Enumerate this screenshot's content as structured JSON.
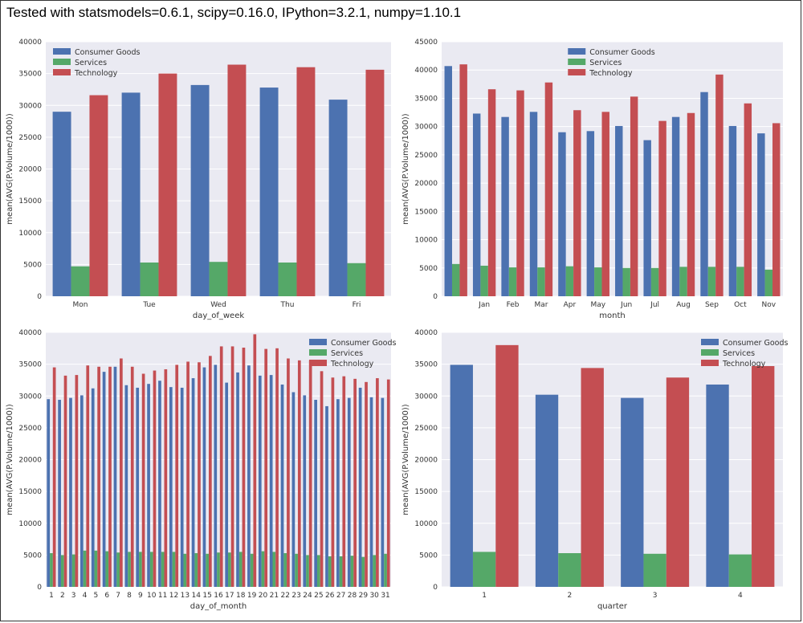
{
  "header": "Tested with statsmodels=0.6.1, scipy=0.16.0, IPython=3.2.1, numpy=1.10.1",
  "colors": {
    "Consumer Goods": "#4c72b0",
    "Services": "#55a868",
    "Technology": "#c44e52",
    "background": "#eaeaf2"
  },
  "chart_data": [
    {
      "type": "bar",
      "xlabel": "day_of_week",
      "ylabel": "mean(AVG(P.Volume/1000))",
      "ylim": [
        0,
        40000
      ],
      "yticks": [
        0,
        5000,
        10000,
        15000,
        20000,
        25000,
        30000,
        35000,
        40000
      ],
      "categories": [
        "Mon",
        "Tue",
        "Wed",
        "Thu",
        "Fri"
      ],
      "legend_position": "top-left",
      "series": [
        {
          "name": "Consumer Goods",
          "values": [
            29000,
            32000,
            33200,
            32800,
            30900
          ]
        },
        {
          "name": "Services",
          "values": [
            4700,
            5300,
            5400,
            5300,
            5200
          ]
        },
        {
          "name": "Technology",
          "values": [
            31600,
            35000,
            36400,
            36000,
            35600
          ]
        }
      ]
    },
    {
      "type": "bar",
      "xlabel": "month",
      "ylabel": "mean(AVG(P.Volume/1000))",
      "ylim": [
        0,
        45000
      ],
      "yticks": [
        0,
        5000,
        10000,
        15000,
        20000,
        25000,
        30000,
        35000,
        40000,
        45000
      ],
      "categories": [
        "",
        "Jan",
        "Feb",
        "Mar",
        "Apr",
        "May",
        "Jun",
        "Jul",
        "Aug",
        "Sep",
        "Oct",
        "Nov"
      ],
      "legend_position": "top-center",
      "series": [
        {
          "name": "Consumer Goods",
          "values": [
            40700,
            32300,
            31700,
            32600,
            29000,
            29200,
            30100,
            27600,
            31700,
            36100,
            30100,
            28800
          ]
        },
        {
          "name": "Services",
          "values": [
            5700,
            5400,
            5100,
            5100,
            5300,
            5100,
            5000,
            5000,
            5200,
            5200,
            5200,
            4700
          ]
        },
        {
          "name": "Technology",
          "values": [
            41000,
            36600,
            36400,
            37800,
            32900,
            32600,
            35300,
            31000,
            32400,
            39200,
            34100,
            30600
          ]
        }
      ]
    },
    {
      "type": "bar",
      "xlabel": "day_of_month",
      "ylabel": "mean(AVG(P.Volume/1000))",
      "ylim": [
        0,
        40000
      ],
      "yticks": [
        0,
        5000,
        10000,
        15000,
        20000,
        25000,
        30000,
        35000,
        40000
      ],
      "categories": [
        "1",
        "2",
        "3",
        "4",
        "5",
        "6",
        "7",
        "8",
        "9",
        "10",
        "11",
        "12",
        "13",
        "14",
        "15",
        "16",
        "17",
        "18",
        "19",
        "20",
        "21",
        "22",
        "23",
        "24",
        "25",
        "26",
        "27",
        "28",
        "29",
        "30",
        "31"
      ],
      "legend_position": "top-right",
      "series": [
        {
          "name": "Consumer Goods",
          "values": [
            29500,
            29400,
            29700,
            30100,
            31200,
            33800,
            34600,
            31700,
            31300,
            31900,
            32400,
            31400,
            31300,
            32800,
            34500,
            34900,
            32100,
            33700,
            34800,
            33200,
            33300,
            31800,
            30600,
            30100,
            29400,
            28400,
            29500,
            29700,
            31300,
            29800,
            29700
          ]
        },
        {
          "name": "Services",
          "values": [
            5300,
            5000,
            5100,
            5700,
            5700,
            5600,
            5400,
            5500,
            5500,
            5500,
            5500,
            5500,
            5200,
            5300,
            5200,
            5400,
            5400,
            5500,
            5200,
            5600,
            5500,
            5300,
            5200,
            5000,
            5000,
            4800,
            4800,
            4900,
            4700,
            5000,
            5200
          ]
        },
        {
          "name": "Technology",
          "values": [
            34500,
            33200,
            33300,
            34800,
            34600,
            34600,
            35900,
            34600,
            33500,
            34000,
            34200,
            34900,
            35400,
            35300,
            36300,
            37800,
            37800,
            37600,
            39700,
            37400,
            37500,
            35900,
            35600,
            35600,
            33900,
            32900,
            33100,
            32700,
            32200,
            32800,
            32600
          ]
        }
      ]
    },
    {
      "type": "bar",
      "xlabel": "quarter",
      "ylabel": "mean(AVG(P.Volume/1000))",
      "ylim": [
        0,
        40000
      ],
      "yticks": [
        0,
        5000,
        10000,
        15000,
        20000,
        25000,
        30000,
        35000,
        40000
      ],
      "categories": [
        "1",
        "2",
        "3",
        "4"
      ],
      "legend_position": "top-right",
      "series": [
        {
          "name": "Consumer Goods",
          "values": [
            34900,
            30200,
            29700,
            31800
          ]
        },
        {
          "name": "Services",
          "values": [
            5500,
            5300,
            5200,
            5100
          ]
        },
        {
          "name": "Technology",
          "values": [
            38000,
            34400,
            32900,
            34700
          ]
        }
      ]
    }
  ]
}
